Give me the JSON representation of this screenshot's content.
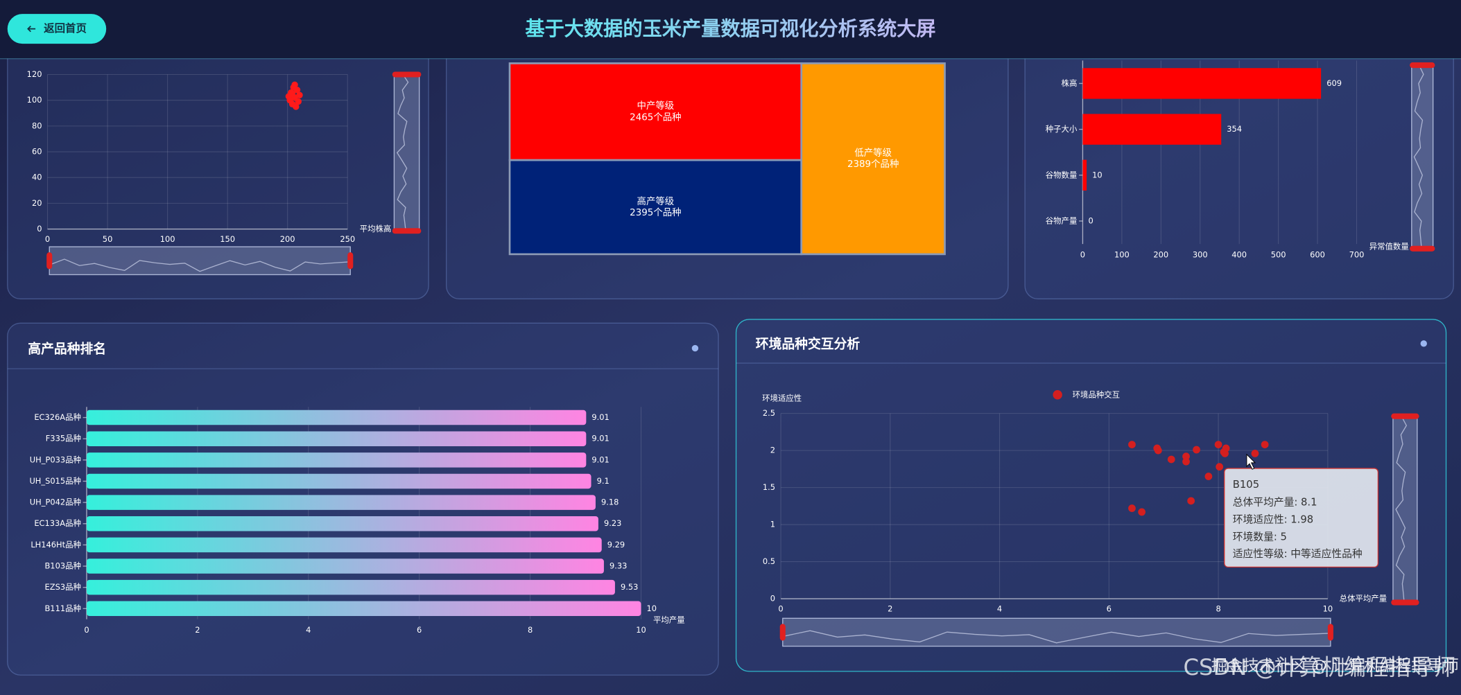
{
  "header": {
    "title": "基于大数据的玉米产量数据可视化分析系统大屏",
    "back_button": "返回首页"
  },
  "chart_data": [
    {
      "type": "scatter",
      "x_label": "平均株高",
      "xlim": [
        0,
        250
      ],
      "xticks": [
        0,
        50,
        100,
        150,
        200,
        250
      ],
      "ylim": [
        0,
        120
      ],
      "yticks": [
        0,
        20,
        40,
        60,
        80,
        100,
        120
      ],
      "grid": true,
      "series": [
        {
          "color": "#ff1a1a",
          "x": [
            205,
            208,
            203,
            210,
            206,
            202,
            209,
            204,
            207,
            201,
            206,
            204
          ],
          "values": [
            110,
            108,
            106,
            104,
            102,
            100,
            99,
            97,
            95,
            103,
            112,
            105
          ]
        }
      ]
    },
    {
      "type": "treemap",
      "categories": [
        "中产等级",
        "高产等级",
        "低产等级"
      ],
      "values": [
        2465,
        2395,
        2389
      ],
      "value_labels": [
        "2465个品种",
        "2395个品种",
        "2389个品种"
      ],
      "colors": [
        "#ff0000",
        "#002278",
        "#ff9900"
      ]
    },
    {
      "type": "bar",
      "orientation": "horizontal",
      "x_label": "异常值数量",
      "categories": [
        "株高",
        "种子大小",
        "谷物数量",
        "谷物产量"
      ],
      "values": [
        609,
        354,
        10,
        0
      ],
      "color": "#ff0000",
      "xlim": [
        0,
        700
      ],
      "xticks": [
        0,
        100,
        200,
        300,
        400,
        500,
        600,
        700
      ],
      "grid": true
    },
    {
      "type": "bar",
      "orientation": "horizontal",
      "title": "高产品种排名",
      "x_label": "平均产量",
      "categories": [
        "EC326A品种",
        "F335品种",
        "UH_P033品种",
        "UH_S015品种",
        "UH_P042品种",
        "EC133A品种",
        "LH146Ht品种",
        "B103品种",
        "EZS3品种",
        "B111品种"
      ],
      "values": [
        9.01,
        9.01,
        9.01,
        9.1,
        9.18,
        9.23,
        9.29,
        9.33,
        9.53,
        10
      ],
      "gradient": [
        "#35f0dc",
        "#ff84e2"
      ],
      "xlim": [
        0,
        10
      ],
      "xticks": [
        0,
        2,
        4,
        6,
        8,
        10
      ],
      "grid": true
    },
    {
      "type": "scatter",
      "title": "环境品种交互分析",
      "x_label": "总体平均产量",
      "y_label": "环境适应性",
      "xlim": [
        0,
        10
      ],
      "xticks": [
        0,
        2,
        4,
        6,
        8,
        10
      ],
      "ylim": [
        0,
        2.5
      ],
      "yticks": [
        0,
        0.5,
        1,
        1.5,
        2,
        2.5
      ],
      "grid": true,
      "series": [
        {
          "name": "环境品种交互",
          "color": "#d41f1f",
          "x": [
            6.42,
            6.88,
            6.9,
            7.14,
            7.41,
            7.41,
            7.6,
            8.0,
            8.14,
            8.12,
            8.02,
            7.82,
            8.67,
            8.85,
            8.1,
            7.5,
            6.42,
            6.6
          ],
          "values": [
            2.08,
            2.03,
            2.0,
            1.88,
            1.92,
            1.85,
            2.01,
            2.08,
            2.03,
            1.96,
            1.78,
            1.65,
            1.96,
            2.08,
            1.98,
            1.32,
            1.22,
            1.17
          ]
        }
      ],
      "tooltip": {
        "title": "B105",
        "lines": [
          "总体平均产量: 8.1",
          "环境适应性: 1.98",
          "环境数量: 5",
          "适应性等级: 中等适应性品种"
        ]
      }
    }
  ],
  "watermark": [
    "CSDN @计算机编程指导师",
    "掘金技术社区 @ 计算机编程指导师"
  ]
}
